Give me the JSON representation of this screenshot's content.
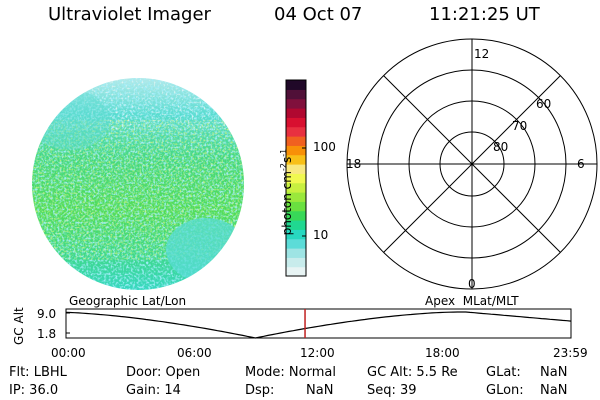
{
  "header": {
    "title": "Ultraviolet Imager",
    "date": "04 Oct 07",
    "time": "11:21:25 UT"
  },
  "colorbar": {
    "label": "photon cm",
    "label_exp1": "-2",
    "label_s": "s",
    "label_exp2": "-1",
    "tick_100": "100",
    "tick_10": "10",
    "colors": [
      "#e8f4f4",
      "#c8ecec",
      "#9ee4e4",
      "#5cdcd8",
      "#28d8c0",
      "#20d890",
      "#38d858",
      "#6ae040",
      "#9ae83c",
      "#c8f040",
      "#f0f850",
      "#f8e880",
      "#f8c018",
      "#f89008",
      "#f06020",
      "#e83040",
      "#d81030",
      "#b00830",
      "#80103c",
      "#501038",
      "#200828"
    ]
  },
  "polar": {
    "label_top": "12",
    "label_bottom": "0",
    "label_left": "18",
    "label_right": "6",
    "ring_60": "60",
    "ring_70": "70",
    "ring_80": "80"
  },
  "timeline": {
    "ylabel": "GC Alt",
    "ytick_top": "9.0",
    "ytick_bottom": "1.8",
    "left_label": "Geographic Lat/Lon",
    "right_label": "Apex  MLat/MLT",
    "xticks": [
      "00:00",
      "06:00",
      "12:00",
      "18:00",
      "23:59"
    ],
    "current_time_hours": 11.36,
    "marker_color": "#c02020"
  },
  "info": {
    "flt": "Flt: LBHL",
    "ip": "IP: 36.0",
    "door": "Door: Open",
    "gain": "Gain: 14",
    "mode": "Mode: Normal",
    "dsp_label": "Dsp:",
    "dsp_value": "NaN",
    "gcalt": "GC Alt: 5.5 Re",
    "seq": "Seq: 39",
    "glat_label": "GLat:",
    "glat_value": "NaN",
    "glon_label": "GLon:",
    "glon_value": "NaN"
  }
}
